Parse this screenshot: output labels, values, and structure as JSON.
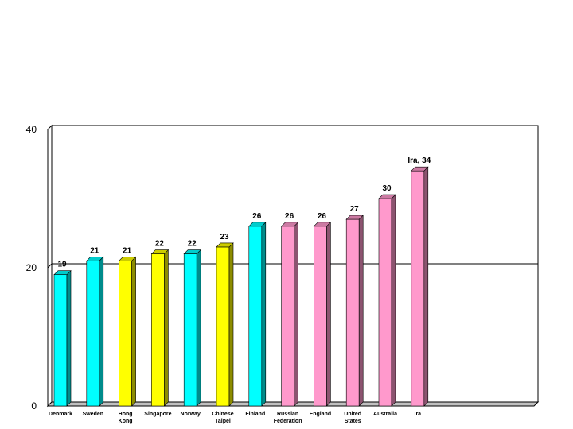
{
  "chart_data": {
    "type": "bar",
    "categories": [
      "Denmark",
      "Sweden",
      "Hong Kong",
      "Singapore",
      "Norway",
      "Chinese Taipei",
      "Finland",
      "Russian Federation",
      "England",
      "United States",
      "Australia",
      "Ira"
    ],
    "category_lines": [
      [
        "Denmark"
      ],
      [
        "Sweden"
      ],
      [
        "Hong",
        "Kong"
      ],
      [
        "Singapore"
      ],
      [
        "Norway"
      ],
      [
        "Chinese",
        "Taipei"
      ],
      [
        "Finland"
      ],
      [
        "Russian",
        "Federation"
      ],
      [
        "England"
      ],
      [
        "United",
        "States"
      ],
      [
        "Australia"
      ],
      [
        "Ira"
      ]
    ],
    "values": [
      19,
      21,
      21,
      22,
      22,
      23,
      26,
      26,
      26,
      27,
      30,
      34
    ],
    "value_labels": [
      "19",
      "21",
      "21",
      "22",
      "22",
      "23",
      "26",
      "26",
      "26",
      "27",
      "30",
      "Ira, 34"
    ],
    "bar_colors": [
      "#00ffff",
      "#00ffff",
      "#ffff00",
      "#ffff00",
      "#00ffff",
      "#ffff00",
      "#00ffff",
      "#ff99cc",
      "#ff99cc",
      "#ff99cc",
      "#ff99cc",
      "#ff99cc"
    ],
    "ylim": [
      0,
      40
    ],
    "yticks": [
      "0",
      "20",
      "40"
    ],
    "reference_line": 20,
    "grid": false,
    "title": "",
    "xlabel": "",
    "ylabel": ""
  }
}
